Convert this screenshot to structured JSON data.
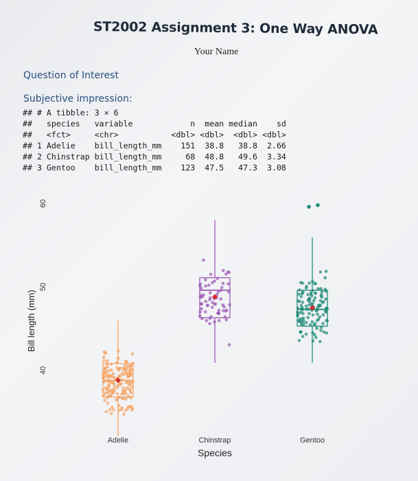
{
  "document": {
    "title": "ST2002 Assignment 3: One Way ANOVA",
    "author": "Your Name",
    "section_heading": "Question of Interest",
    "subheading": "Subjective impression:"
  },
  "console_output": {
    "lines": [
      "## # A tibble: 3 × 6",
      "##   species   variable            n  mean median    sd",
      "##   <fct>     <chr>           <dbl> <dbl>  <dbl> <dbl>",
      "## 1 Adelie    bill_length_mm    151  38.8   38.8  2.66",
      "## 2 Chinstrap bill_length_mm     68  48.8   49.6  3.34",
      "## 3 Gentoo    bill_length_mm    123  47.5   47.3  3.08"
    ]
  },
  "colors": {
    "adelie": "#f4a261",
    "chinstrap": "#9b59b6",
    "gentoo": "#1e8a7a",
    "mean_marker": "#d62828",
    "heading": "#2a4f7e"
  },
  "chart_data": {
    "type": "box",
    "xlabel": "Species",
    "ylabel": "Bill length (mm)",
    "ylim": [
      33,
      60.5
    ],
    "yticks": [
      40,
      50,
      60
    ],
    "categories": [
      "Adelie",
      "Chinstrap",
      "Gentoo"
    ],
    "boxes": [
      {
        "name": "Adelie",
        "min": 32.1,
        "q1": 36.8,
        "median": 38.8,
        "q3": 40.8,
        "max": 46.0,
        "mean": 38.8,
        "sd": 2.66,
        "n": 151
      },
      {
        "name": "Chinstrap",
        "min": 40.9,
        "q1": 46.3,
        "median": 49.6,
        "q3": 51.1,
        "max": 58.0,
        "mean": 48.8,
        "sd": 3.34,
        "n": 68
      },
      {
        "name": "Gentoo",
        "min": 40.9,
        "q1": 45.3,
        "median": 47.3,
        "q3": 49.6,
        "max": 55.9,
        "mean": 47.5,
        "sd": 3.08,
        "n": 123
      }
    ],
    "outliers": [
      {
        "category": "Gentoo",
        "values": [
          59.6,
          59.8
        ]
      }
    ],
    "points": "jittered individual observations overlaid on each box"
  }
}
